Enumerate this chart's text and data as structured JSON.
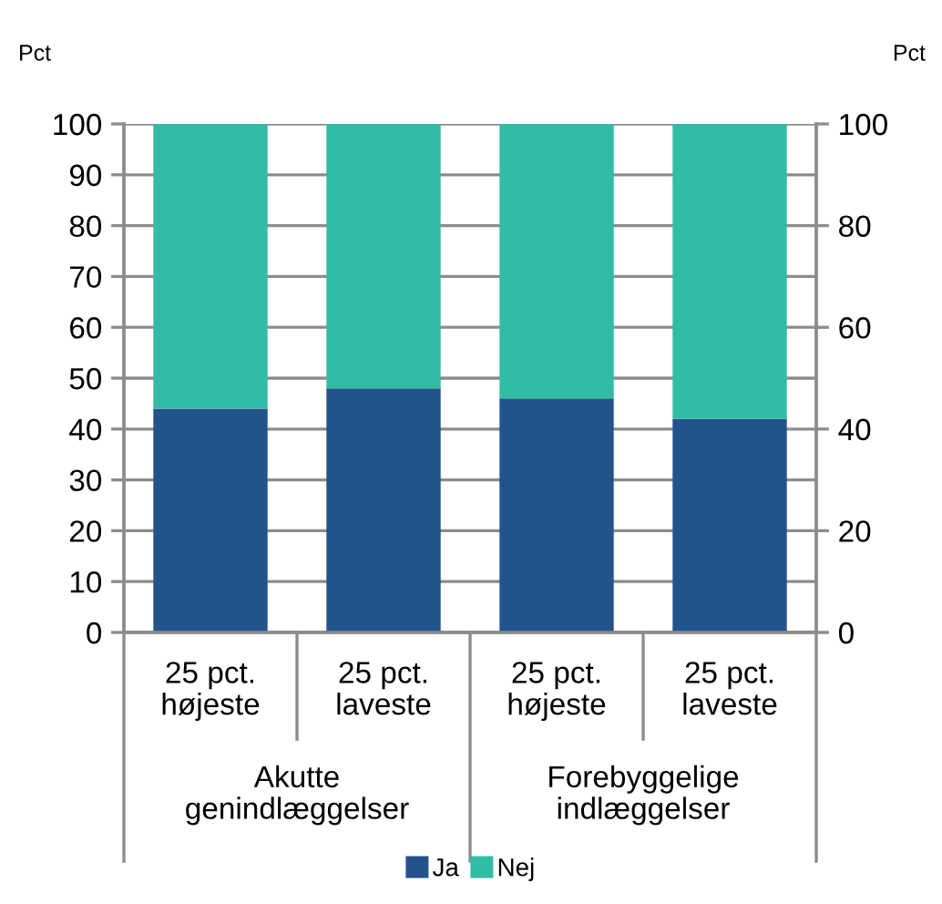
{
  "chart_data": {
    "type": "bar",
    "stacked": true,
    "categories": [
      "25 pct.\nhøjeste",
      "25 pct.\nlaveste",
      "25 pct.\nhøjeste",
      "25 pct.\nlaveste"
    ],
    "series": [
      {
        "name": "Ja",
        "color": "#23538b",
        "values": [
          44,
          48,
          46,
          42
        ]
      },
      {
        "name": "Nej",
        "color": "#32bba5",
        "values": [
          56,
          52,
          54,
          58
        ]
      }
    ],
    "ylabel": "Pct",
    "y2label": "Pct",
    "ylim": [
      0,
      100
    ],
    "yticks": [
      0,
      10,
      20,
      30,
      40,
      50,
      60,
      70,
      80,
      90,
      100
    ],
    "y2lim": [
      0,
      100
    ],
    "y2ticks": [
      0,
      20,
      40,
      60,
      80,
      100
    ],
    "annotations": [
      "Akutte\ngenindlæggelser",
      "Forebyggelige\nindlæggelser"
    ],
    "grid": "y",
    "legend": "bottom"
  }
}
